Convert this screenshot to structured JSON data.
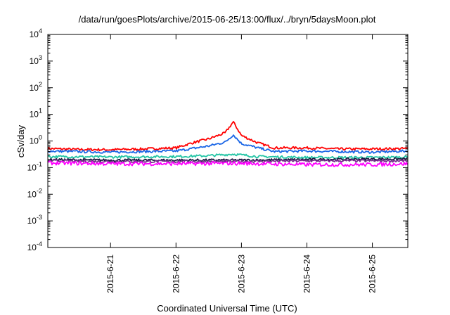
{
  "chart_data": {
    "type": "line",
    "title": "/data/run/goesPlots/archive/2015-06-25/13:00/flux/../bryn/5daysMoon.plot",
    "xlabel": "Coordinated Universal Time (UTC)",
    "ylabel": "cSv/day",
    "yscale": "log",
    "ylim": [
      0.0001,
      10000
    ],
    "xlim": [
      "2015-06-20T01:00",
      "2015-06-25T13:00"
    ],
    "grid": false,
    "legend": "none",
    "y_ticks": [
      {
        "value": 0.0001,
        "base": "10",
        "exp": "-4"
      },
      {
        "value": 0.001,
        "base": "10",
        "exp": "-3"
      },
      {
        "value": 0.01,
        "base": "10",
        "exp": "-2"
      },
      {
        "value": 0.1,
        "base": "10",
        "exp": "-1"
      },
      {
        "value": 1,
        "base": "10",
        "exp": "0"
      },
      {
        "value": 10,
        "base": "10",
        "exp": "1"
      },
      {
        "value": 100,
        "base": "10",
        "exp": "2"
      },
      {
        "value": 1000,
        "base": "10",
        "exp": "3"
      },
      {
        "value": 10000,
        "base": "10",
        "exp": "4"
      }
    ],
    "x_ticks": [
      {
        "value": "2015-06-21T00:00",
        "label": "2015-6-21"
      },
      {
        "value": "2015-06-22T00:00",
        "label": "2015-6-22"
      },
      {
        "value": "2015-06-23T00:00",
        "label": "2015-6-23"
      },
      {
        "value": "2015-06-24T00:00",
        "label": "2015-6-24"
      },
      {
        "value": "2015-06-25T00:00",
        "label": "2015-6-25"
      }
    ],
    "series": [
      {
        "color": "#ff0000",
        "values": [
          [
            "2015-06-20T01:00",
            0.52
          ],
          [
            "2015-06-20T12:00",
            0.48
          ],
          [
            "2015-06-21T00:00",
            0.47
          ],
          [
            "2015-06-21T12:00",
            0.5
          ],
          [
            "2015-06-22T00:00",
            0.55
          ],
          [
            "2015-06-22T06:00",
            0.85
          ],
          [
            "2015-06-22T12:00",
            1.2
          ],
          [
            "2015-06-22T18:00",
            2.0
          ],
          [
            "2015-06-22T21:00",
            5.2
          ],
          [
            "2015-06-23T00:00",
            1.6
          ],
          [
            "2015-06-23T06:00",
            0.85
          ],
          [
            "2015-06-23T12:00",
            0.55
          ],
          [
            "2015-06-24T00:00",
            0.55
          ],
          [
            "2015-06-24T12:00",
            0.5
          ],
          [
            "2015-06-25T00:00",
            0.5
          ],
          [
            "2015-06-25T13:00",
            0.52
          ]
        ]
      },
      {
        "color": "#1a66e6",
        "values": [
          [
            "2015-06-20T01:00",
            0.42
          ],
          [
            "2015-06-20T12:00",
            0.4
          ],
          [
            "2015-06-21T00:00",
            0.38
          ],
          [
            "2015-06-21T12:00",
            0.4
          ],
          [
            "2015-06-22T00:00",
            0.42
          ],
          [
            "2015-06-22T06:00",
            0.52
          ],
          [
            "2015-06-22T12:00",
            0.65
          ],
          [
            "2015-06-22T18:00",
            0.9
          ],
          [
            "2015-06-22T21:00",
            1.7
          ],
          [
            "2015-06-23T00:00",
            0.8
          ],
          [
            "2015-06-23T06:00",
            0.55
          ],
          [
            "2015-06-23T12:00",
            0.4
          ],
          [
            "2015-06-24T00:00",
            0.42
          ],
          [
            "2015-06-24T12:00",
            0.4
          ],
          [
            "2015-06-25T00:00",
            0.38
          ],
          [
            "2015-06-25T13:00",
            0.42
          ]
        ]
      },
      {
        "color": "#22c4a4",
        "values": [
          [
            "2015-06-20T01:00",
            0.26
          ],
          [
            "2015-06-21T00:00",
            0.25
          ],
          [
            "2015-06-22T00:00",
            0.26
          ],
          [
            "2015-06-22T12:00",
            0.28
          ],
          [
            "2015-06-22T21:00",
            0.32
          ],
          [
            "2015-06-23T06:00",
            0.26
          ],
          [
            "2015-06-24T00:00",
            0.24
          ],
          [
            "2015-06-25T00:00",
            0.24
          ],
          [
            "2015-06-25T13:00",
            0.25
          ]
        ]
      },
      {
        "color": "#1a1a40",
        "values": [
          [
            "2015-06-20T01:00",
            0.2
          ],
          [
            "2015-06-21T00:00",
            0.19
          ],
          [
            "2015-06-22T00:00",
            0.19
          ],
          [
            "2015-06-23T00:00",
            0.19
          ],
          [
            "2015-06-24T00:00",
            0.2
          ],
          [
            "2015-06-25T00:00",
            0.21
          ],
          [
            "2015-06-25T13:00",
            0.21
          ]
        ]
      },
      {
        "color": "#7a2e8e",
        "values": [
          [
            "2015-06-20T01:00",
            0.18
          ],
          [
            "2015-06-21T00:00",
            0.17
          ],
          [
            "2015-06-22T00:00",
            0.17
          ],
          [
            "2015-06-23T00:00",
            0.17
          ],
          [
            "2015-06-24T00:00",
            0.18
          ],
          [
            "2015-06-25T00:00",
            0.18
          ],
          [
            "2015-06-25T13:00",
            0.18
          ]
        ]
      },
      {
        "color": "#ff00ff",
        "values": [
          [
            "2015-06-20T01:00",
            0.15
          ],
          [
            "2015-06-21T00:00",
            0.14
          ],
          [
            "2015-06-22T00:00",
            0.14
          ],
          [
            "2015-06-23T00:00",
            0.145
          ],
          [
            "2015-06-24T00:00",
            0.13
          ],
          [
            "2015-06-25T00:00",
            0.13
          ],
          [
            "2015-06-25T13:00",
            0.14
          ]
        ]
      }
    ]
  }
}
